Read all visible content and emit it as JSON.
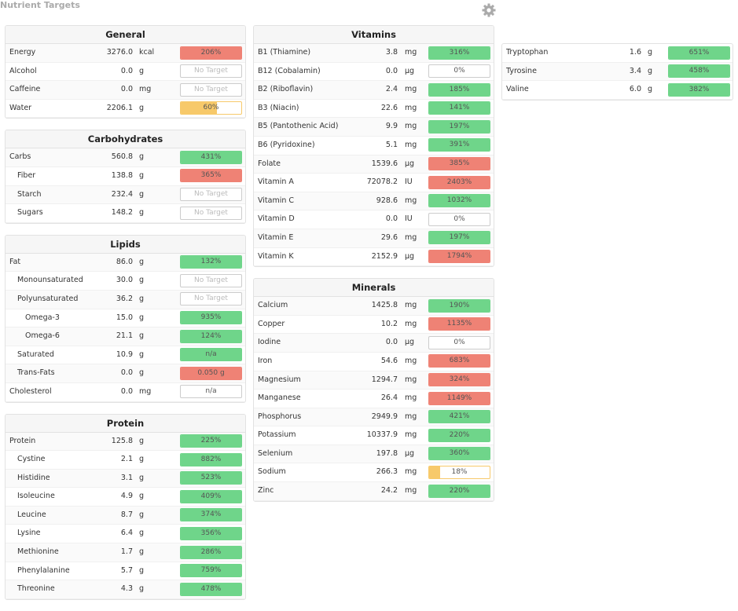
{
  "header": {
    "title": "Nutrient Targets"
  },
  "columns": [
    {
      "panels": [
        {
          "title": "General",
          "rows": [
            {
              "name": "Energy",
              "amount": "3276.0",
              "unit": "kcal",
              "target": {
                "value": 206,
                "label": "206%",
                "color": "#ef8275"
              }
            },
            {
              "name": "Alcohol",
              "amount": "0.0",
              "unit": "g",
              "target": {
                "label": "No Target"
              }
            },
            {
              "name": "Caffeine",
              "amount": "0.0",
              "unit": "mg",
              "target": {
                "label": "No Target"
              }
            },
            {
              "name": "Water",
              "amount": "2206.1",
              "unit": "g",
              "target": {
                "value": 60,
                "label": "60%",
                "color": "#f7c96a"
              }
            }
          ]
        },
        {
          "title": "Carbohydrates",
          "rows": [
            {
              "name": "Carbs",
              "amount": "560.8",
              "unit": "g",
              "target": {
                "value": 431,
                "label": "431%",
                "color": "#6fd58a"
              },
              "children": [
                {
                  "name": "Fiber",
                  "amount": "138.8",
                  "unit": "g",
                  "target": {
                    "value": 365,
                    "label": "365%",
                    "color": "#ef8275"
                  }
                },
                {
                  "name": "Starch",
                  "amount": "232.4",
                  "unit": "g",
                  "target": {
                    "label": "No Target"
                  }
                },
                {
                  "name": "Sugars",
                  "amount": "148.2",
                  "unit": "g",
                  "target": {
                    "label": "No Target"
                  }
                }
              ]
            }
          ]
        },
        {
          "title": "Lipids",
          "rows": [
            {
              "name": "Fat",
              "amount": "86.0",
              "unit": "g",
              "target": {
                "value": 132,
                "label": "132%",
                "color": "#6fd58a"
              },
              "children": [
                {
                  "name": "Monounsaturated",
                  "amount": "30.0",
                  "unit": "g",
                  "target": {
                    "label": "No Target"
                  }
                },
                {
                  "name": "Polyunsaturated",
                  "amount": "36.2",
                  "unit": "g",
                  "target": {
                    "label": "No Target"
                  },
                  "children": [
                    {
                      "name": "Omega-3",
                      "amount": "15.0",
                      "unit": "g",
                      "target": {
                        "value": 935,
                        "label": "935%",
                        "color": "#6fd58a"
                      }
                    },
                    {
                      "name": "Omega-6",
                      "amount": "21.1",
                      "unit": "g",
                      "target": {
                        "value": 124,
                        "label": "124%",
                        "color": "#6fd58a"
                      }
                    }
                  ]
                },
                {
                  "name": "Saturated",
                  "amount": "10.9",
                  "unit": "g",
                  "target": {
                    "label": "n/a",
                    "color": "#6fd58a"
                  }
                },
                {
                  "name": "Trans-Fats",
                  "amount": "0.0",
                  "unit": "g",
                  "target": {
                    "label": "0.050 g",
                    "color": "#ef8275"
                  }
                }
              ]
            },
            {
              "name": "Cholesterol",
              "amount": "0.0",
              "unit": "mg",
              "target": {
                "label": "n/a"
              }
            }
          ]
        },
        {
          "title": "Protein",
          "rows": [
            {
              "name": "Protein",
              "amount": "125.8",
              "unit": "g",
              "target": {
                "value": 225,
                "label": "225%",
                "color": "#6fd58a"
              },
              "children": [
                {
                  "name": "Cystine",
                  "amount": "2.1",
                  "unit": "g",
                  "target": {
                    "value": 882,
                    "label": "882%",
                    "color": "#6fd58a"
                  }
                },
                {
                  "name": "Histidine",
                  "amount": "3.1",
                  "unit": "g",
                  "target": {
                    "value": 523,
                    "label": "523%",
                    "color": "#6fd58a"
                  }
                },
                {
                  "name": "Isoleucine",
                  "amount": "4.9",
                  "unit": "g",
                  "target": {
                    "value": 409,
                    "label": "409%",
                    "color": "#6fd58a"
                  }
                },
                {
                  "name": "Leucine",
                  "amount": "8.7",
                  "unit": "g",
                  "target": {
                    "value": 374,
                    "label": "374%",
                    "color": "#6fd58a"
                  }
                },
                {
                  "name": "Lysine",
                  "amount": "6.4",
                  "unit": "g",
                  "target": {
                    "value": 356,
                    "label": "356%",
                    "color": "#6fd58a"
                  }
                },
                {
                  "name": "Methionine",
                  "amount": "1.7",
                  "unit": "g",
                  "target": {
                    "value": 286,
                    "label": "286%",
                    "color": "#6fd58a"
                  }
                },
                {
                  "name": "Phenylalanine",
                  "amount": "5.7",
                  "unit": "g",
                  "target": {
                    "value": 759,
                    "label": "759%",
                    "color": "#6fd58a"
                  }
                },
                {
                  "name": "Threonine",
                  "amount": "4.3",
                  "unit": "g",
                  "target": {
                    "value": 478,
                    "label": "478%",
                    "color": "#6fd58a"
                  }
                }
              ]
            }
          ]
        }
      ]
    },
    {
      "panels": [
        {
          "title": "Vitamins",
          "rows": [
            {
              "name": "B1 (Thiamine)",
              "amount": "3.8",
              "unit": "mg",
              "target": {
                "value": 316,
                "label": "316%",
                "color": "#6fd58a"
              }
            },
            {
              "name": "B12 (Cobalamin)",
              "amount": "0.0",
              "unit": "µg",
              "target": {
                "value": 0,
                "label": "0%"
              }
            },
            {
              "name": "B2 (Riboflavin)",
              "amount": "2.4",
              "unit": "mg",
              "target": {
                "value": 185,
                "label": "185%",
                "color": "#6fd58a"
              }
            },
            {
              "name": "B3 (Niacin)",
              "amount": "22.6",
              "unit": "mg",
              "target": {
                "value": 141,
                "label": "141%",
                "color": "#6fd58a"
              }
            },
            {
              "name": "B5 (Pantothenic Acid)",
              "amount": "9.9",
              "unit": "mg",
              "target": {
                "value": 197,
                "label": "197%",
                "color": "#6fd58a"
              }
            },
            {
              "name": "B6 (Pyridoxine)",
              "amount": "5.1",
              "unit": "mg",
              "target": {
                "value": 391,
                "label": "391%",
                "color": "#6fd58a"
              }
            },
            {
              "name": "Folate",
              "amount": "1539.6",
              "unit": "µg",
              "target": {
                "value": 385,
                "label": "385%",
                "color": "#ef8275"
              }
            },
            {
              "name": "Vitamin A",
              "amount": "72078.2",
              "unit": "IU",
              "target": {
                "value": 2403,
                "label": "2403%",
                "color": "#ef8275"
              }
            },
            {
              "name": "Vitamin C",
              "amount": "928.6",
              "unit": "mg",
              "target": {
                "value": 1032,
                "label": "1032%",
                "color": "#6fd58a"
              }
            },
            {
              "name": "Vitamin D",
              "amount": "0.0",
              "unit": "IU",
              "target": {
                "value": 0,
                "label": "0%"
              }
            },
            {
              "name": "Vitamin E",
              "amount": "29.6",
              "unit": "mg",
              "target": {
                "value": 197,
                "label": "197%",
                "color": "#6fd58a"
              }
            },
            {
              "name": "Vitamin K",
              "amount": "2152.9",
              "unit": "µg",
              "target": {
                "value": 1794,
                "label": "1794%",
                "color": "#ef8275"
              }
            }
          ]
        },
        {
          "title": "Minerals",
          "rows": [
            {
              "name": "Calcium",
              "amount": "1425.8",
              "unit": "mg",
              "target": {
                "value": 190,
                "label": "190%",
                "color": "#6fd58a"
              }
            },
            {
              "name": "Copper",
              "amount": "10.2",
              "unit": "mg",
              "target": {
                "value": 1135,
                "label": "1135%",
                "color": "#ef8275"
              }
            },
            {
              "name": "Iodine",
              "amount": "0.0",
              "unit": "µg",
              "target": {
                "value": 0,
                "label": "0%"
              }
            },
            {
              "name": "Iron",
              "amount": "54.6",
              "unit": "mg",
              "target": {
                "value": 683,
                "label": "683%",
                "color": "#ef8275"
              }
            },
            {
              "name": "Magnesium",
              "amount": "1294.7",
              "unit": "mg",
              "target": {
                "value": 324,
                "label": "324%",
                "color": "#ef8275"
              }
            },
            {
              "name": "Manganese",
              "amount": "26.4",
              "unit": "mg",
              "target": {
                "value": 1149,
                "label": "1149%",
                "color": "#ef8275"
              }
            },
            {
              "name": "Phosphorus",
              "amount": "2949.9",
              "unit": "mg",
              "target": {
                "value": 421,
                "label": "421%",
                "color": "#6fd58a"
              }
            },
            {
              "name": "Potassium",
              "amount": "10337.9",
              "unit": "mg",
              "target": {
                "value": 220,
                "label": "220%",
                "color": "#6fd58a"
              }
            },
            {
              "name": "Selenium",
              "amount": "197.8",
              "unit": "µg",
              "target": {
                "value": 360,
                "label": "360%",
                "color": "#6fd58a"
              }
            },
            {
              "name": "Sodium",
              "amount": "266.3",
              "unit": "mg",
              "target": {
                "value": 18,
                "label": "18%",
                "color": "#f7c96a"
              }
            },
            {
              "name": "Zinc",
              "amount": "24.2",
              "unit": "mg",
              "target": {
                "value": 220,
                "label": "220%",
                "color": "#6fd58a"
              }
            }
          ]
        }
      ]
    },
    {
      "panels": [
        {
          "rows": [
            {
              "name": "Tryptophan",
              "amount": "1.6",
              "unit": "g",
              "target": {
                "value": 651,
                "label": "651%",
                "color": "#6fd58a"
              }
            },
            {
              "name": "Tyrosine",
              "amount": "3.4",
              "unit": "g",
              "target": {
                "value": 458,
                "label": "458%",
                "color": "#6fd58a"
              }
            },
            {
              "name": "Valine",
              "amount": "6.0",
              "unit": "g",
              "target": {
                "value": 382,
                "label": "382%",
                "color": "#6fd58a"
              }
            }
          ]
        }
      ]
    }
  ]
}
